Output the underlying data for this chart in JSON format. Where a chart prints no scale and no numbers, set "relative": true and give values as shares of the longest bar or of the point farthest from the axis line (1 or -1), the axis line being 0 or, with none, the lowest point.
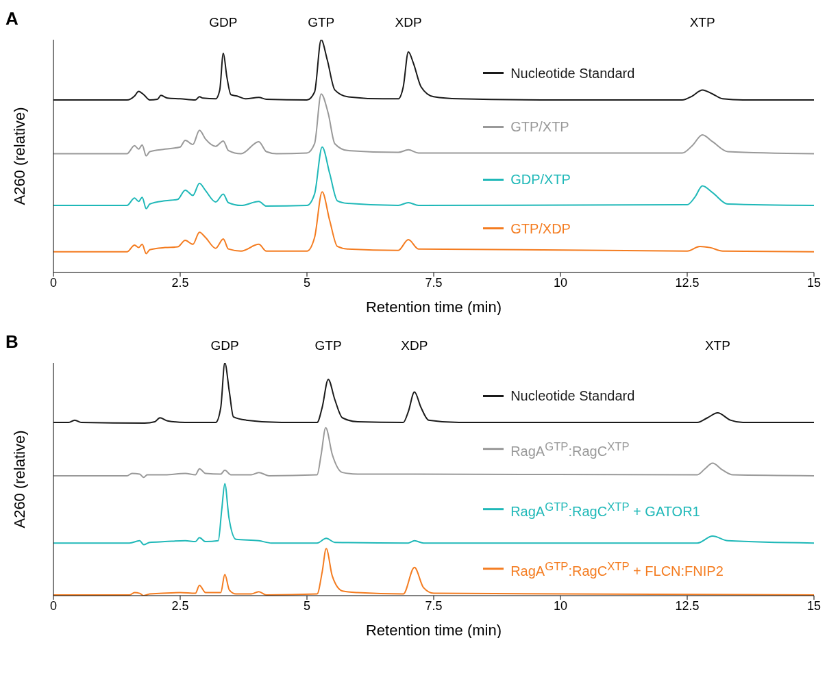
{
  "chart_data": [
    {
      "type": "line",
      "title": "A",
      "xlabel": "Retention time (min)",
      "ylabel": "A260 (relative)",
      "relative": true,
      "xlim": [
        0,
        15
      ],
      "xticks": [
        0,
        2.5,
        5,
        7.5,
        10,
        12.5,
        15
      ],
      "legend": "right",
      "annotations": [
        "GDP",
        "GTP",
        "XDP",
        "XTP"
      ],
      "series": [
        {
          "name": "Nucleotide Standard",
          "color": "#1a1a1a",
          "x": [
            0,
            1.45,
            1.6,
            1.68,
            1.78,
            1.9,
            2.05,
            2.12,
            2.25,
            2.5,
            2.8,
            2.88,
            2.95,
            3.2,
            3.28,
            3.35,
            3.42,
            3.5,
            3.62,
            3.8,
            4.05,
            4.2,
            5.0,
            5.15,
            5.28,
            5.4,
            5.55,
            5.8,
            6.5,
            6.8,
            6.9,
            7.0,
            7.1,
            7.25,
            7.5,
            8,
            10,
            12.4,
            12.6,
            12.8,
            13.0,
            13.2,
            13.6,
            15
          ],
          "values": [
            0.741,
            0.741,
            0.758,
            0.778,
            0.764,
            0.741,
            0.744,
            0.761,
            0.749,
            0.746,
            0.741,
            0.755,
            0.749,
            0.746,
            0.784,
            0.942,
            0.841,
            0.764,
            0.758,
            0.746,
            0.752,
            0.744,
            0.741,
            0.775,
            1.0,
            0.914,
            0.784,
            0.755,
            0.746,
            0.746,
            0.798,
            0.948,
            0.899,
            0.798,
            0.755,
            0.746,
            0.741,
            0.741,
            0.758,
            0.784,
            0.767,
            0.746,
            0.741,
            0.741
          ]
        },
        {
          "name": "GTP/XTP",
          "color": "#999999",
          "x": [
            0,
            1.45,
            1.6,
            1.68,
            1.75,
            1.83,
            1.9,
            2.2,
            2.5,
            2.6,
            2.75,
            2.88,
            3.0,
            3.2,
            3.35,
            3.45,
            3.7,
            4.05,
            4.2,
            4.4,
            5.0,
            5.15,
            5.28,
            5.42,
            5.55,
            5.8,
            6.8,
            7.0,
            7.2,
            12.4,
            12.6,
            12.8,
            13.0,
            13.3,
            15
          ],
          "values": [
            0.51,
            0.51,
            0.545,
            0.53,
            0.548,
            0.501,
            0.519,
            0.53,
            0.539,
            0.568,
            0.55,
            0.611,
            0.573,
            0.542,
            0.565,
            0.524,
            0.51,
            0.562,
            0.519,
            0.51,
            0.513,
            0.553,
            0.767,
            0.683,
            0.553,
            0.524,
            0.516,
            0.527,
            0.513,
            0.513,
            0.545,
            0.591,
            0.562,
            0.519,
            0.51
          ]
        },
        {
          "name": "GDP/XTP",
          "color": "#1fb8b8",
          "x": [
            0,
            1.45,
            1.6,
            1.68,
            1.75,
            1.83,
            1.9,
            2.2,
            2.45,
            2.6,
            2.75,
            2.88,
            3.0,
            3.2,
            3.35,
            3.45,
            3.7,
            4.05,
            4.2,
            5.0,
            5.15,
            5.3,
            5.45,
            5.6,
            5.8,
            6.8,
            7.0,
            7.2,
            12.5,
            12.65,
            12.8,
            13.0,
            13.3,
            15
          ],
          "values": [
            0.288,
            0.288,
            0.32,
            0.305,
            0.323,
            0.274,
            0.294,
            0.308,
            0.314,
            0.354,
            0.331,
            0.383,
            0.352,
            0.303,
            0.337,
            0.3,
            0.288,
            0.305,
            0.285,
            0.288,
            0.337,
            0.539,
            0.424,
            0.308,
            0.297,
            0.288,
            0.3,
            0.288,
            0.291,
            0.323,
            0.372,
            0.343,
            0.294,
            0.288
          ]
        },
        {
          "name": "GTP/XDP",
          "color": "#f47c20",
          "x": [
            0,
            1.45,
            1.6,
            1.68,
            1.75,
            1.83,
            1.9,
            2.2,
            2.45,
            2.6,
            2.75,
            2.88,
            3.0,
            3.2,
            3.35,
            3.45,
            3.7,
            4.05,
            4.2,
            5.0,
            5.15,
            5.3,
            5.45,
            5.6,
            5.8,
            6.8,
            7.0,
            7.2,
            12.5,
            12.75,
            12.95,
            13.2,
            15
          ],
          "values": [
            0.089,
            0.089,
            0.118,
            0.107,
            0.121,
            0.081,
            0.098,
            0.107,
            0.11,
            0.138,
            0.121,
            0.173,
            0.15,
            0.104,
            0.144,
            0.101,
            0.092,
            0.121,
            0.092,
            0.092,
            0.15,
            0.346,
            0.222,
            0.112,
            0.101,
            0.095,
            0.141,
            0.101,
            0.092,
            0.112,
            0.107,
            0.092,
            0.089
          ]
        }
      ]
    },
    {
      "type": "line",
      "title": "B",
      "xlabel": "Retention time (min)",
      "ylabel": "A260 (relative)",
      "relative": true,
      "xlim": [
        0,
        15
      ],
      "xticks": [
        0,
        2.5,
        5,
        7.5,
        10,
        12.5,
        15
      ],
      "legend": "right",
      "annotations": [
        "GDP",
        "GTP",
        "XDP",
        "XTP"
      ],
      "series": [
        {
          "name": "Nucleotide Standard",
          "color": "#1a1a1a",
          "x": [
            0,
            0.3,
            0.42,
            0.55,
            1.8,
            2.0,
            2.1,
            2.25,
            2.6,
            3.2,
            3.3,
            3.38,
            3.47,
            3.55,
            3.8,
            4.5,
            5.2,
            5.3,
            5.42,
            5.55,
            5.7,
            6.0,
            6.9,
            7.0,
            7.12,
            7.25,
            7.4,
            8,
            12.7,
            12.9,
            13.1,
            13.35,
            13.6,
            15
          ],
          "values": [
            0.744,
            0.744,
            0.754,
            0.744,
            0.741,
            0.747,
            0.764,
            0.751,
            0.744,
            0.744,
            0.808,
            1.0,
            0.875,
            0.768,
            0.754,
            0.744,
            0.744,
            0.808,
            0.929,
            0.842,
            0.764,
            0.747,
            0.744,
            0.791,
            0.875,
            0.808,
            0.754,
            0.744,
            0.744,
            0.764,
            0.785,
            0.754,
            0.744,
            0.744
          ]
        },
        {
          "name": "RagA$^{GTP}$:RagC$^{XTP}$",
          "color": "#999999",
          "x": [
            0,
            1.45,
            1.55,
            1.7,
            1.78,
            1.85,
            2.2,
            2.6,
            2.8,
            2.88,
            3.0,
            3.3,
            3.38,
            3.5,
            3.9,
            4.05,
            4.25,
            5.2,
            5.28,
            5.37,
            5.5,
            5.7,
            6.0,
            7.1,
            12.7,
            12.85,
            13.0,
            13.2,
            13.4,
            15
          ],
          "values": [
            0.515,
            0.515,
            0.525,
            0.522,
            0.508,
            0.519,
            0.519,
            0.525,
            0.519,
            0.545,
            0.525,
            0.522,
            0.539,
            0.519,
            0.519,
            0.529,
            0.515,
            0.519,
            0.606,
            0.721,
            0.606,
            0.529,
            0.522,
            0.522,
            0.519,
            0.545,
            0.569,
            0.539,
            0.519,
            0.515
          ]
        },
        {
          "name": "RagA$^{GTP}$:RagC$^{XTP}$ + GATOR1",
          "color": "#1fb8b8",
          "x": [
            0,
            1.5,
            1.7,
            1.78,
            1.9,
            2.2,
            2.6,
            2.8,
            2.88,
            3.0,
            3.25,
            3.32,
            3.38,
            3.46,
            3.6,
            4.05,
            4.3,
            5.2,
            5.38,
            5.55,
            7.0,
            7.12,
            7.3,
            12.7,
            13.0,
            13.3,
            15
          ],
          "values": [
            0.226,
            0.226,
            0.236,
            0.219,
            0.229,
            0.232,
            0.236,
            0.232,
            0.249,
            0.232,
            0.236,
            0.37,
            0.481,
            0.337,
            0.242,
            0.236,
            0.226,
            0.226,
            0.246,
            0.229,
            0.226,
            0.236,
            0.226,
            0.226,
            0.256,
            0.236,
            0.226
          ]
        },
        {
          "name": "RagA$^{GTP}$:RagC$^{XTP}$ + FLCN:FNIP2",
          "color": "#f47c20",
          "x": [
            0,
            1.5,
            1.6,
            1.7,
            1.78,
            1.9,
            2.5,
            2.8,
            2.88,
            3.0,
            3.3,
            3.38,
            3.47,
            3.6,
            3.9,
            4.05,
            4.2,
            5.2,
            5.3,
            5.38,
            5.5,
            5.7,
            6.0,
            6.9,
            7.12,
            7.3,
            7.5,
            15
          ],
          "values": [
            0.003,
            0.003,
            0.013,
            0.01,
            0,
            0.007,
            0.013,
            0.01,
            0.044,
            0.013,
            0.013,
            0.091,
            0.024,
            0.007,
            0.007,
            0.017,
            0.003,
            0.007,
            0.101,
            0.202,
            0.084,
            0.02,
            0.013,
            0.007,
            0.121,
            0.034,
            0.01,
            0.003
          ]
        }
      ]
    }
  ]
}
